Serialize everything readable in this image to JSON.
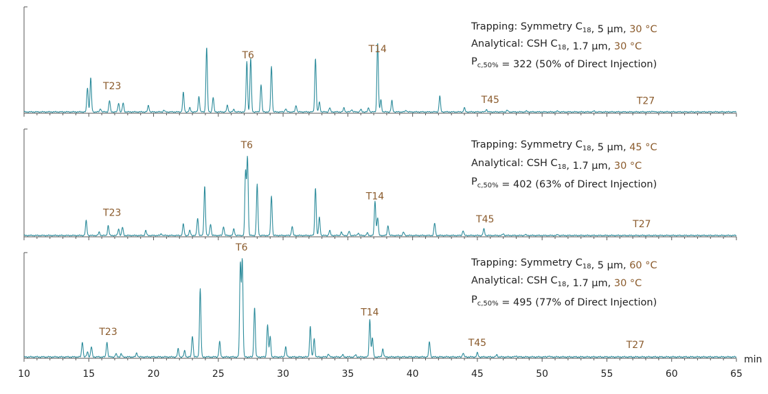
{
  "colors": {
    "trace": "#2a8a9a",
    "label": "#8a5a2b",
    "text": "#222222",
    "axis": "#555555"
  },
  "chart_data": {
    "type": "line",
    "xlabel": "min",
    "xlim": [
      10,
      65
    ],
    "x_ticks": [
      10,
      15,
      20,
      25,
      30,
      35,
      40,
      45,
      50,
      55,
      60,
      65
    ],
    "panels": [
      {
        "conditions": [
          {
            "parts": [
              [
                "Trapping: Symmetry C",
                false,
                false
              ],
              [
                "18",
                false,
                true
              ],
              [
                ", 5 µm, ",
                false,
                false
              ],
              [
                "30 °C",
                true,
                false
              ]
            ]
          },
          {
            "parts": [
              [
                "Analytical: CSH C",
                false,
                false
              ],
              [
                "18",
                false,
                true
              ],
              [
                ", 1.7 µm, ",
                false,
                false
              ],
              [
                "30 °C",
                true,
                false
              ]
            ]
          },
          {
            "parts": [
              [
                "P",
                false,
                false
              ],
              [
                "c,50%",
                false,
                true
              ],
              [
                " = 322 (50% of Direct Injection)",
                false,
                false
              ]
            ]
          }
        ],
        "peak_labels": [
          {
            "text": "T23",
            "x": 16.8,
            "h": 0.22
          },
          {
            "text": "T6",
            "x": 27.3,
            "h": 0.6
          },
          {
            "text": "T14",
            "x": 37.3,
            "h": 0.68
          },
          {
            "text": "T45",
            "x": 46.0,
            "h": 0.05
          },
          {
            "text": "T27",
            "x": 58.0,
            "h": 0.04
          }
        ],
        "peaks": [
          [
            14.9,
            0.3
          ],
          [
            15.15,
            0.42
          ],
          [
            15.9,
            0.04
          ],
          [
            16.6,
            0.14
          ],
          [
            17.3,
            0.11
          ],
          [
            17.65,
            0.11
          ],
          [
            19.6,
            0.08
          ],
          [
            20.8,
            0.02
          ],
          [
            22.3,
            0.24
          ],
          [
            22.8,
            0.05
          ],
          [
            23.5,
            0.19
          ],
          [
            24.1,
            0.8
          ],
          [
            24.6,
            0.18
          ],
          [
            25.7,
            0.08
          ],
          [
            26.2,
            0.03
          ],
          [
            27.2,
            0.62
          ],
          [
            27.5,
            0.66
          ],
          [
            28.3,
            0.34
          ],
          [
            29.1,
            0.56
          ],
          [
            30.2,
            0.04
          ],
          [
            31.0,
            0.08
          ],
          [
            32.5,
            0.66
          ],
          [
            32.8,
            0.12
          ],
          [
            33.6,
            0.05
          ],
          [
            34.7,
            0.05
          ],
          [
            35.3,
            0.03
          ],
          [
            36.0,
            0.03
          ],
          [
            36.6,
            0.05
          ],
          [
            37.3,
            0.86
          ],
          [
            37.55,
            0.15
          ],
          [
            38.4,
            0.14
          ],
          [
            39.5,
            0.02
          ],
          [
            42.1,
            0.2
          ],
          [
            44.0,
            0.05
          ],
          [
            45.7,
            0.03
          ],
          [
            47.3,
            0.02
          ],
          [
            48.8,
            0.01
          ],
          [
            51.2,
            0.01
          ],
          [
            54.0,
            0.01
          ],
          [
            58.5,
            0.01
          ]
        ]
      },
      {
        "conditions": [
          {
            "parts": [
              [
                "Trapping: Symmetry C",
                false,
                false
              ],
              [
                "18",
                false,
                true
              ],
              [
                ", 5 µm, ",
                false,
                false
              ],
              [
                "45 °C",
                true,
                false
              ]
            ]
          },
          {
            "parts": [
              [
                "Analytical: CSH C",
                false,
                false
              ],
              [
                "18",
                false,
                true
              ],
              [
                ", 1.7 µm, ",
                false,
                false
              ],
              [
                "30 °C",
                true,
                false
              ]
            ]
          },
          {
            "parts": [
              [
                "P",
                false,
                false
              ],
              [
                "c,50%",
                false,
                true
              ],
              [
                " = 402 (63% of Direct Injection)",
                false,
                false
              ]
            ]
          }
        ],
        "peak_labels": [
          {
            "text": "T23",
            "x": 16.8,
            "h": 0.18
          },
          {
            "text": "T6",
            "x": 27.2,
            "h": 1.0
          },
          {
            "text": "T14",
            "x": 37.1,
            "h": 0.38
          },
          {
            "text": "T45",
            "x": 45.6,
            "h": 0.1
          },
          {
            "text": "T27",
            "x": 57.7,
            "h": 0.04
          }
        ],
        "peaks": [
          [
            14.8,
            0.18
          ],
          [
            15.8,
            0.04
          ],
          [
            16.5,
            0.12
          ],
          [
            17.3,
            0.08
          ],
          [
            17.6,
            0.1
          ],
          [
            19.4,
            0.06
          ],
          [
            20.6,
            0.02
          ],
          [
            22.3,
            0.14
          ],
          [
            22.8,
            0.06
          ],
          [
            23.4,
            0.21
          ],
          [
            23.95,
            0.6
          ],
          [
            24.4,
            0.14
          ],
          [
            25.4,
            0.11
          ],
          [
            26.2,
            0.08
          ],
          [
            27.1,
            0.78
          ],
          [
            27.25,
            0.95
          ],
          [
            28.0,
            0.62
          ],
          [
            29.1,
            0.48
          ],
          [
            30.7,
            0.11
          ],
          [
            32.5,
            0.58
          ],
          [
            32.8,
            0.22
          ],
          [
            33.6,
            0.06
          ],
          [
            34.5,
            0.04
          ],
          [
            35.1,
            0.05
          ],
          [
            35.8,
            0.03
          ],
          [
            36.5,
            0.03
          ],
          [
            37.1,
            0.42
          ],
          [
            37.3,
            0.22
          ],
          [
            38.1,
            0.12
          ],
          [
            39.3,
            0.04
          ],
          [
            41.7,
            0.15
          ],
          [
            43.9,
            0.06
          ],
          [
            45.5,
            0.08
          ],
          [
            47.0,
            0.02
          ],
          [
            48.7,
            0.01
          ],
          [
            51.2,
            0.01
          ]
        ]
      },
      {
        "conditions": [
          {
            "parts": [
              [
                "Trapping: Symmetry C",
                false,
                false
              ],
              [
                "18",
                false,
                true
              ],
              [
                ", 5 µm, ",
                false,
                false
              ],
              [
                "60 °C",
                true,
                false
              ]
            ]
          },
          {
            "parts": [
              [
                "Analytical: CSH C",
                false,
                false
              ],
              [
                "18",
                false,
                true
              ],
              [
                ", 1.7 µm, ",
                false,
                false
              ],
              [
                "30 °C",
                true,
                false
              ]
            ]
          },
          {
            "parts": [
              [
                "P",
                false,
                false
              ],
              [
                "c,50%",
                false,
                true
              ],
              [
                " = 495 (77% of Direct Injection)",
                false,
                false
              ]
            ]
          }
        ],
        "peak_labels": [
          {
            "text": "T23",
            "x": 16.5,
            "h": 0.17
          },
          {
            "text": "T6",
            "x": 26.8,
            "h": 1.0
          },
          {
            "text": "T14",
            "x": 36.7,
            "h": 0.36
          },
          {
            "text": "T45",
            "x": 45.0,
            "h": 0.06
          },
          {
            "text": "T27",
            "x": 57.2,
            "h": 0.04
          }
        ],
        "peaks": [
          [
            14.5,
            0.15
          ],
          [
            14.9,
            0.05
          ],
          [
            15.2,
            0.1
          ],
          [
            16.4,
            0.15
          ],
          [
            17.1,
            0.03
          ],
          [
            17.5,
            0.03
          ],
          [
            18.7,
            0.04
          ],
          [
            21.9,
            0.08
          ],
          [
            22.4,
            0.06
          ],
          [
            23.0,
            0.21
          ],
          [
            23.6,
            0.67
          ],
          [
            25.1,
            0.15
          ],
          [
            26.7,
            0.92
          ],
          [
            26.85,
            0.95
          ],
          [
            27.8,
            0.49
          ],
          [
            28.8,
            0.32
          ],
          [
            29.0,
            0.2
          ],
          [
            30.2,
            0.1
          ],
          [
            32.1,
            0.3
          ],
          [
            32.4,
            0.18
          ],
          [
            33.5,
            0.03
          ],
          [
            34.6,
            0.02
          ],
          [
            35.6,
            0.02
          ],
          [
            36.7,
            0.37
          ],
          [
            36.9,
            0.19
          ],
          [
            37.7,
            0.08
          ],
          [
            41.3,
            0.15
          ],
          [
            43.9,
            0.04
          ],
          [
            45.0,
            0.04
          ],
          [
            46.5,
            0.02
          ],
          [
            48.0,
            0.01
          ],
          [
            50.5,
            0.01
          ]
        ]
      }
    ]
  }
}
